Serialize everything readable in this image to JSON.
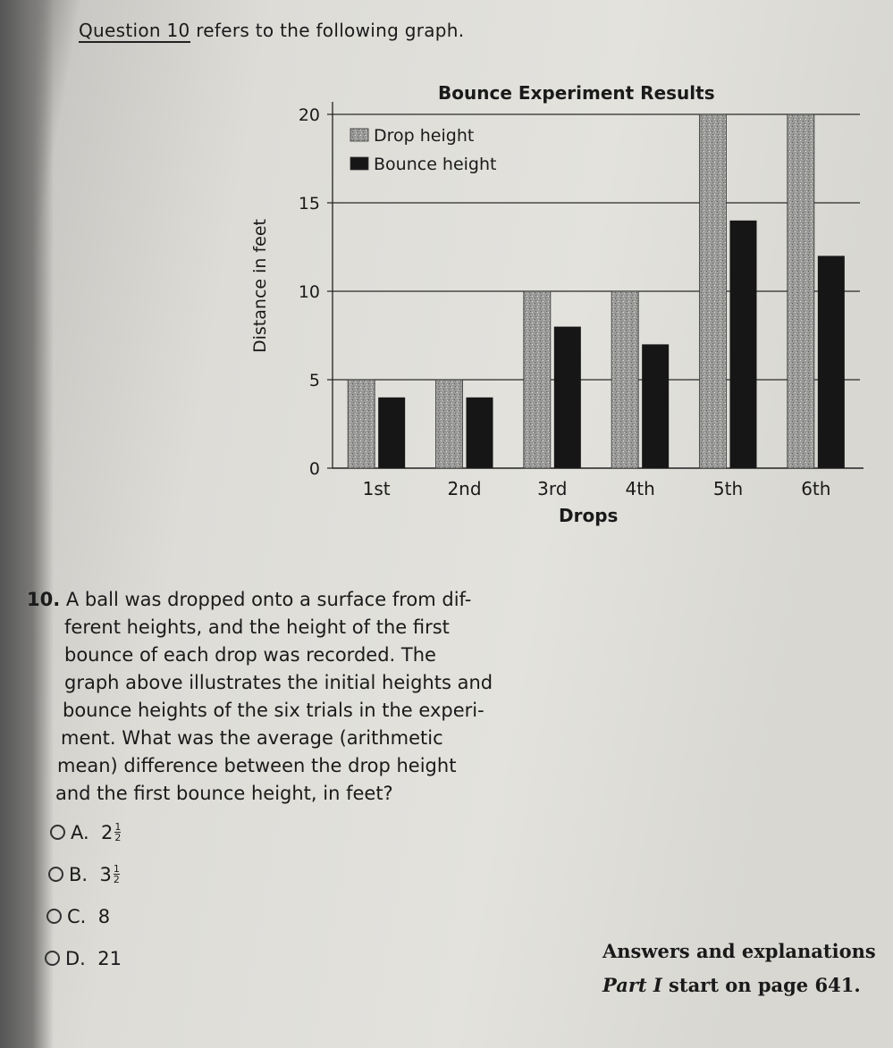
{
  "intro": {
    "question_ref": "Question 10",
    "rest": " refers to the following graph."
  },
  "chart_data": {
    "type": "bar",
    "title": "Bounce Experiment Results",
    "xlabel": "Drops",
    "ylabel": "Distance in feet",
    "categories": [
      "1st",
      "2nd",
      "3rd",
      "4th",
      "5th",
      "6th"
    ],
    "series": [
      {
        "name": "Drop height",
        "values": [
          5,
          5,
          10,
          10,
          20,
          20
        ],
        "color": "#9a9a98"
      },
      {
        "name": "Bounce height",
        "values": [
          4,
          4,
          8,
          7,
          14,
          12
        ],
        "color": "#161616"
      }
    ],
    "ylim": [
      0,
      20
    ],
    "yticks": [
      0,
      5,
      10,
      15,
      20
    ],
    "grid": true,
    "legend_position": "top-left"
  },
  "question": {
    "number": "10.",
    "lines": [
      "A ball was dropped onto a surface from dif-",
      "ferent heights, and the height of the first",
      "bounce of each drop was recorded. The",
      "graph above illustrates the initial heights and",
      "bounce heights of the six trials in the experi-",
      "ment. What was the average (arithmetic",
      "mean) difference between the drop height",
      "and the first bounce height, in feet?"
    ]
  },
  "choices": [
    {
      "letter": "A.",
      "whole": "2",
      "num": "1",
      "den": "2"
    },
    {
      "letter": "B.",
      "whole": "3",
      "num": "1",
      "den": "2"
    },
    {
      "letter": "C.",
      "whole": "8"
    },
    {
      "letter": "D.",
      "whole": "21"
    }
  ],
  "answers_note": {
    "line1": "Answers and explanations",
    "line2_italic": "Part I",
    "line2_rest": " start on page 641."
  }
}
